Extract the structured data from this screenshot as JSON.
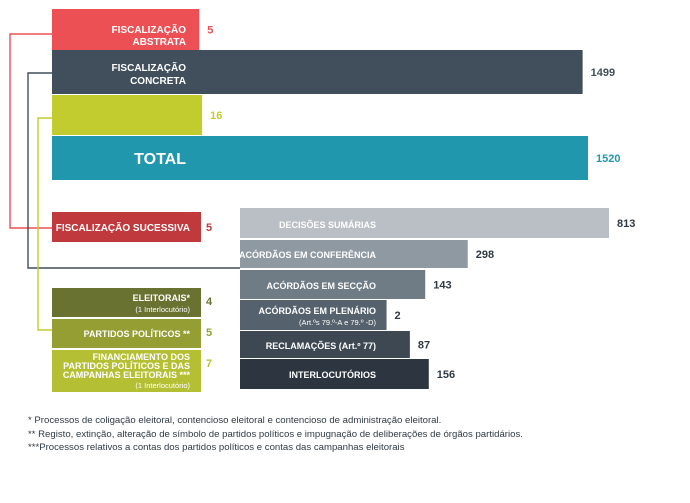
{
  "chart_data": {
    "type": "bar",
    "colors": {
      "abstrata": "#ec5054",
      "concreta": "#404f5b",
      "lime": "#c3cc2f",
      "total": "#2197ad",
      "sucessiva": "#c0393d",
      "darkOlive": "#6a7232",
      "olive": "#949e33",
      "oliveLight": "#b5bf34",
      "gray1": "#b9bfc4",
      "gray2": "#8f99a2",
      "gray3": "#6f7b85",
      "gray4": "#55626d",
      "gray5": "#3d4852",
      "gray6": "#2d3640"
    },
    "main": [
      {
        "label": "FISCALIZAÇÃO ABSTRATA",
        "value": 5
      },
      {
        "label": "FISCALIZAÇÃO CONCRETA",
        "value": 1499
      },
      {
        "label": "",
        "value": 16
      },
      {
        "label": "TOTAL",
        "value": 1520
      }
    ],
    "sucessiva": {
      "label": "FISCALIZAÇÃO SUCESSIVA",
      "value": 5
    },
    "electoral": [
      {
        "label": "ELEITORAIS*",
        "sublabel": "(1 Interlocutório)",
        "value": 4
      },
      {
        "label": "PARTIDOS POLÍTICOS **",
        "sublabel": "",
        "value": 5
      },
      {
        "label": "FINANCIAMENTO DOS PARTIDOS POLÍTICOS E DAS CAMPANHAS ELEITORAIS ***",
        "sublabel": "(1 Interlocutório)",
        "value": 7
      }
    ],
    "concreta_breakdown": [
      {
        "label": "DECISÕES SUMÁRIAS",
        "value": 813
      },
      {
        "label": "ACÓRDÃOS EM CONFERÊNCIA",
        "value": 298
      },
      {
        "label": "ACÓRDÃOS EM SECÇÃO",
        "value": 143
      },
      {
        "label": "ACÓRDÃOS  EM PLENÁRIO",
        "sublabel": "(Art.ºs 79.º-A e 79.º -D)",
        "value": 2
      },
      {
        "label": "RECLAMAÇÕES (Art.º 77)",
        "value": 87
      },
      {
        "label": "INTERLOCUTÓRIOS",
        "value": 156
      }
    ]
  },
  "footnotes": [
    "* Processos de coligação eleitoral, contencioso eleitoral e contencioso de administração eleitoral.",
    "** Registo, extinção,  alteração de símbolo de partidos políticos e impugnação de deliberações de órgãos partidários.",
    "***Processos relativos a contas dos partidos políticos e contas das campanhas eleitorais"
  ]
}
